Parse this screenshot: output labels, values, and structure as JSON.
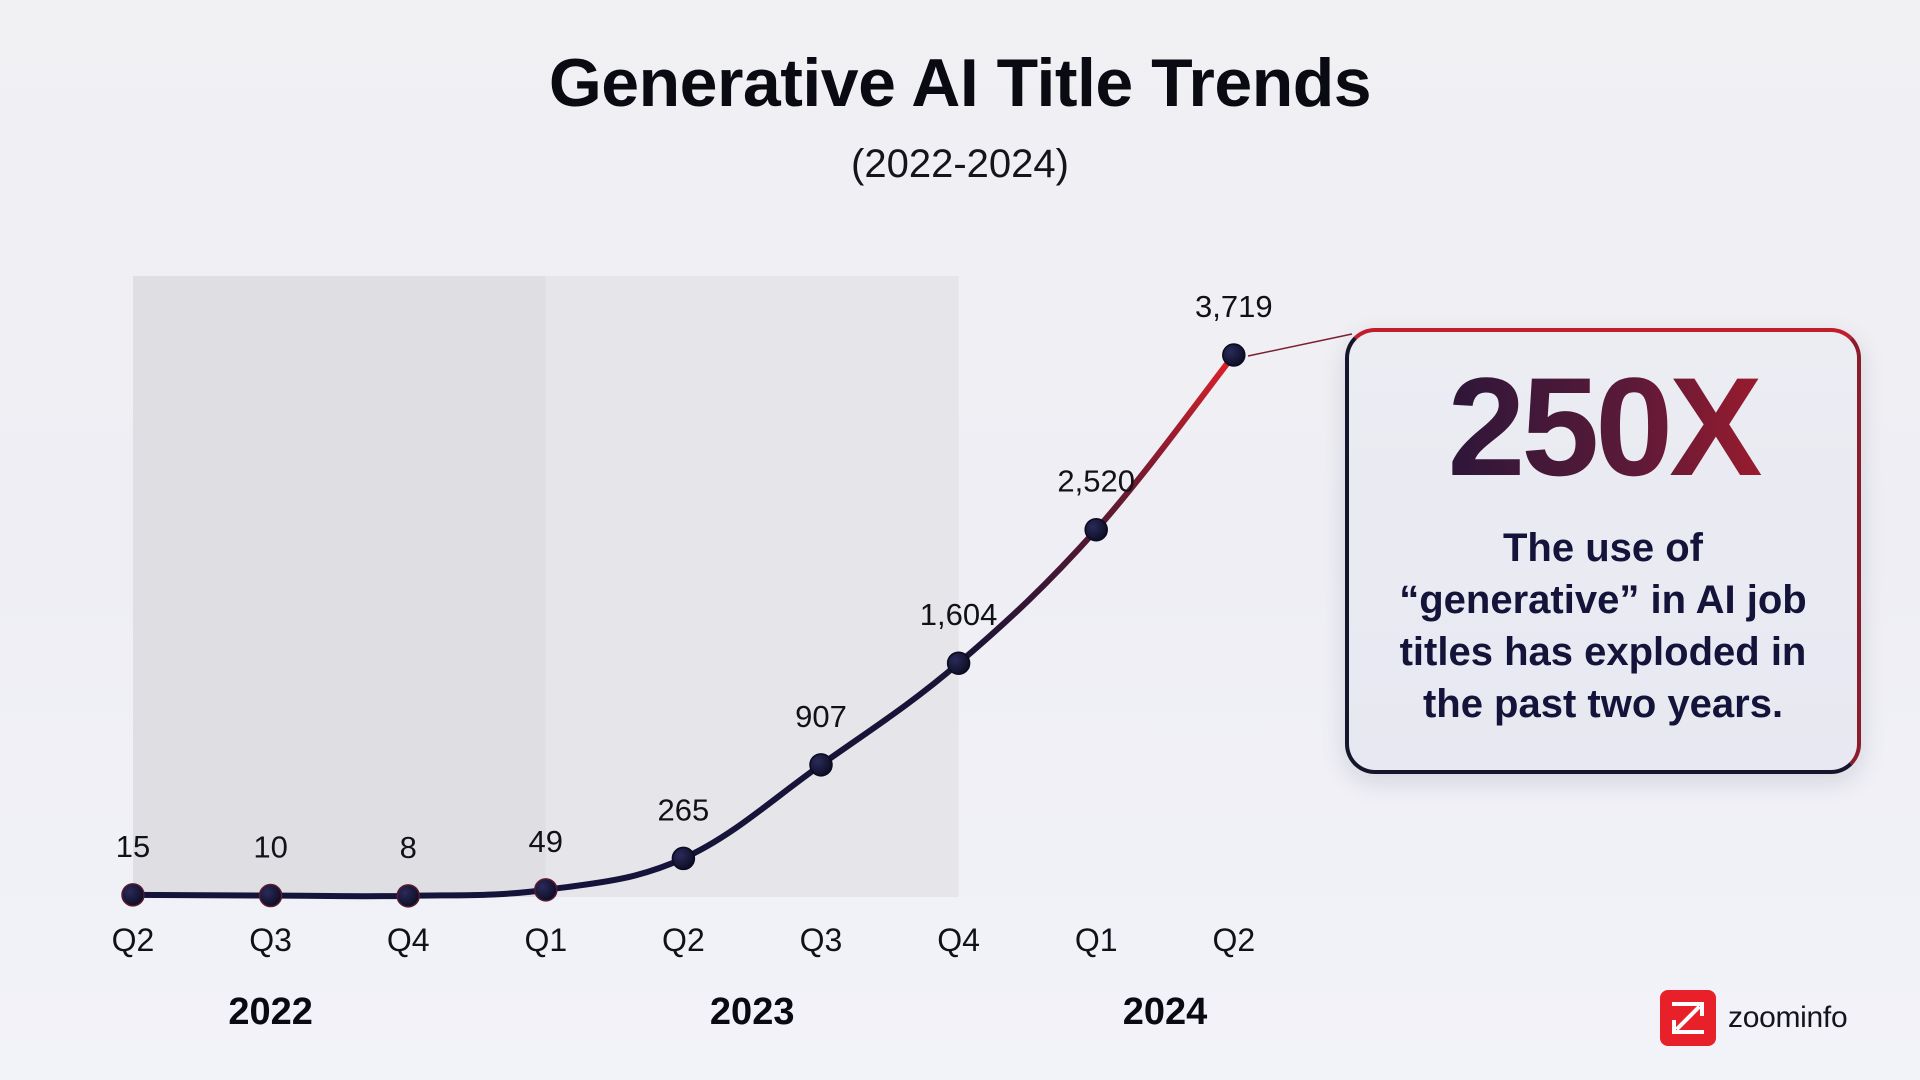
{
  "page": {
    "title": "Generative AI Title Trends",
    "subtitle": "(2022-2024)"
  },
  "callout": {
    "headline": "250X",
    "text": "The use of “generative” in AI job titles has exploded in the past two years."
  },
  "logo": {
    "text": "zoominfo",
    "icon": "zoominfo-z-logo-icon"
  },
  "colors": {
    "line_start": "#14143a",
    "line_end": "#e0202a",
    "marker": "#0e0e2a",
    "shade": "#dcdce0",
    "accent": "#e8202a"
  },
  "chart_data": {
    "type": "line",
    "title": "Generative AI Title Trends",
    "subtitle": "(2022-2024)",
    "categories": [
      "Q2",
      "Q3",
      "Q4",
      "Q1",
      "Q2",
      "Q3",
      "Q4",
      "Q1",
      "Q2"
    ],
    "years": [
      {
        "label": "2022",
        "quarters": [
          "Q2",
          "Q3",
          "Q4"
        ]
      },
      {
        "label": "2023",
        "quarters": [
          "Q1",
          "Q2",
          "Q3",
          "Q4"
        ]
      },
      {
        "label": "2024",
        "quarters": [
          "Q1",
          "Q2"
        ]
      }
    ],
    "values": [
      15,
      10,
      8,
      49,
      265,
      907,
      1604,
      2520,
      3719
    ],
    "data_labels": [
      "15",
      "10",
      "8",
      "49",
      "265",
      "907",
      "1,604",
      "2,520",
      "3,719"
    ],
    "ylim": [
      0,
      3719
    ],
    "grid": "vertical lines at each quarter",
    "legend": "none"
  }
}
